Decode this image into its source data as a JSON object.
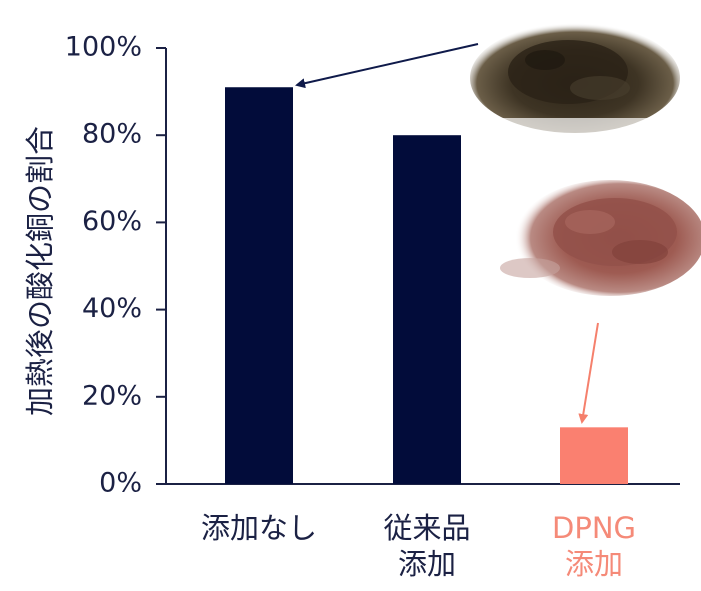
{
  "chart_data": {
    "type": "bar",
    "title": "",
    "xlabel": "",
    "ylabel": "加熱後の酸化銅の割合",
    "ylim": [
      0,
      100
    ],
    "y_ticks": [
      "0%",
      "20%",
      "40%",
      "60%",
      "80%",
      "100%"
    ],
    "y_tick_values": [
      0,
      20,
      40,
      60,
      80,
      100
    ],
    "categories": [
      {
        "lines": [
          "添加なし"
        ]
      },
      {
        "lines": [
          "従来品",
          "添加"
        ]
      },
      {
        "lines": [
          "DPNG",
          "添加"
        ]
      }
    ],
    "values": [
      91,
      80,
      13
    ],
    "bar_colors": [
      "#020c3a",
      "#020c3a",
      "#fa8070"
    ],
    "label_colors": [
      "#1b2144",
      "#1b2144",
      "#f58a78"
    ],
    "grid": false,
    "annotations": [
      {
        "kind": "photo-arrow",
        "target_bar": 0,
        "color": "#0f1a4a",
        "depicts": "dark brown/black powder pile"
      },
      {
        "kind": "photo-arrow",
        "target_bar": 2,
        "color": "#f5806c",
        "depicts": "reddish-brown powder pile"
      }
    ]
  }
}
